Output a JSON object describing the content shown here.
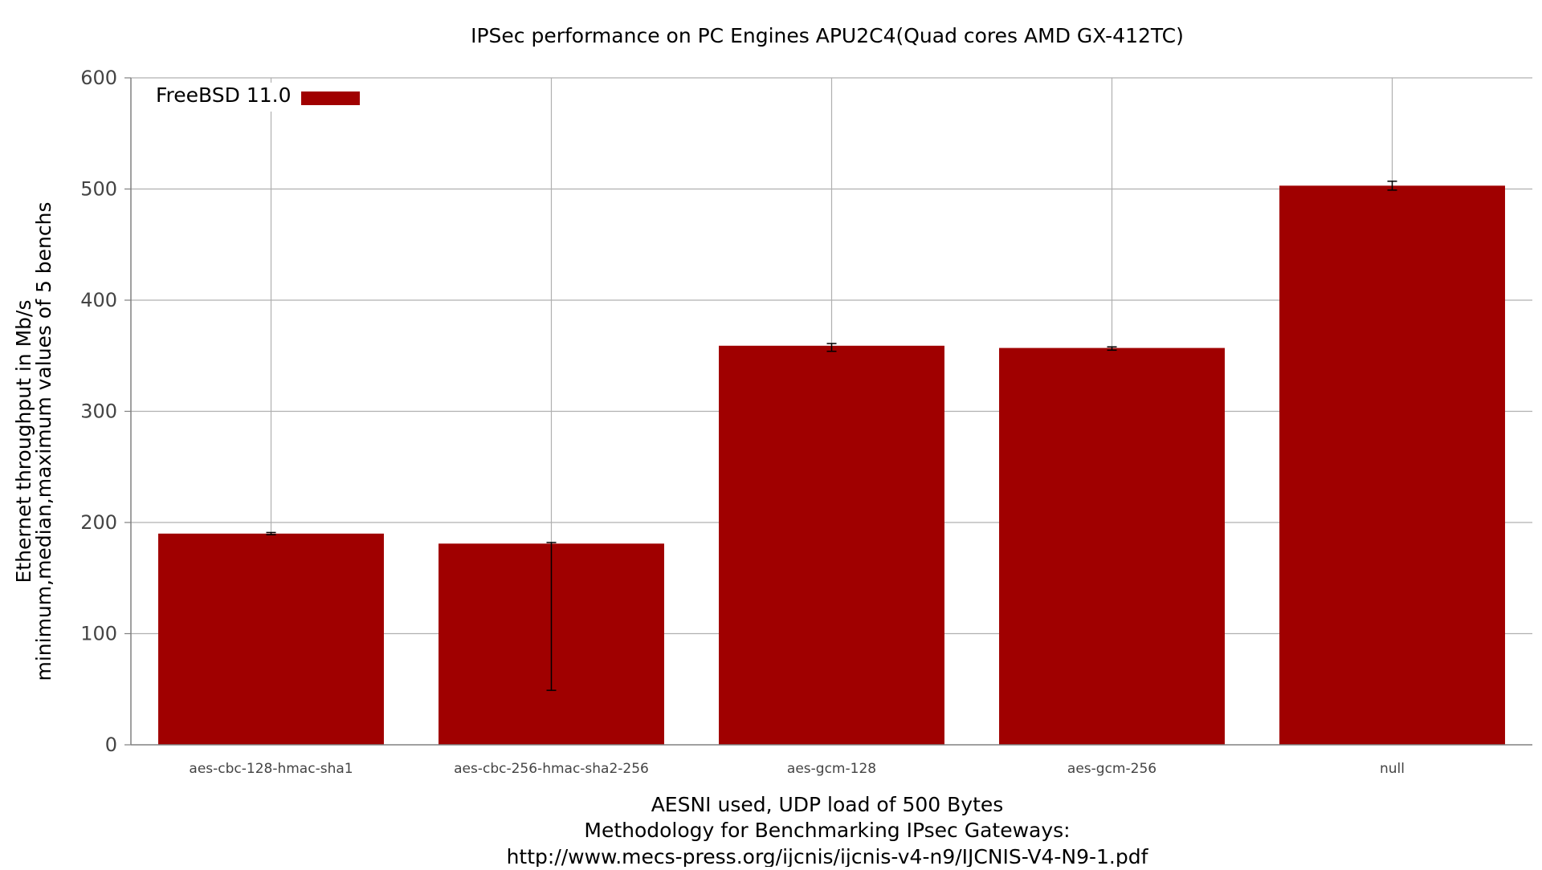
{
  "chart_data": {
    "type": "bar",
    "title": "IPSec performance on PC Engines APU2C4(Quad cores AMD GX-412TC)",
    "categories": [
      "aes-cbc-128-hmac-sha1",
      "aes-cbc-256-hmac-sha2-256",
      "aes-gcm-128",
      "aes-gcm-256",
      "null"
    ],
    "series": [
      {
        "name": "FreeBSD 11.0",
        "values": [
          190,
          181,
          359,
          357,
          503
        ],
        "min": [
          189,
          49,
          354,
          355,
          499
        ],
        "max": [
          191,
          182,
          361,
          358,
          507
        ]
      }
    ],
    "ylim": [
      0,
      600
    ],
    "yticks": [
      0,
      100,
      200,
      300,
      400,
      500,
      600
    ],
    "ylabel_lines": [
      "Ethernet throughput in Mb/s",
      "minimum,median,maximum values of 5 benchs"
    ],
    "xlabel_lines": [
      "AESNI used, UDP load of 500 Bytes",
      "Methodology for Benchmarking IPsec Gateways:",
      "http://www.mecs-press.org/ijcnis/ijcnis-v4-n9/IJCNIS-V4-N9-1.pdf"
    ],
    "grid": true,
    "legend_position": "top-left",
    "colors": {
      "bar": "#a00000",
      "grid": "#b0b0b0",
      "axis": "#808080",
      "errorbar": "#000000"
    }
  }
}
